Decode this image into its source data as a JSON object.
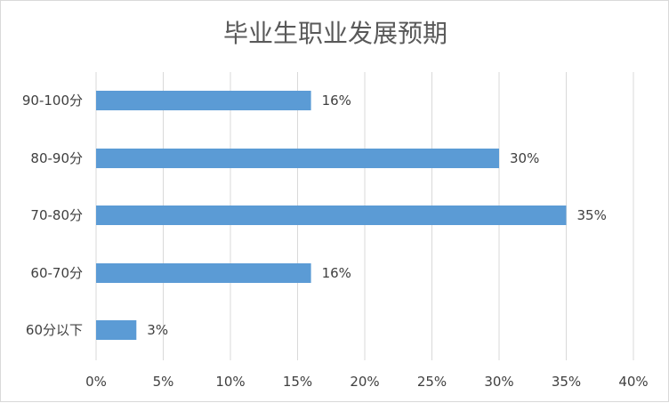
{
  "chart_data": {
    "type": "bar",
    "orientation": "horizontal",
    "title": "毕业生职业发展预期",
    "categories": [
      "90-100分",
      "80-90分",
      "70-80分",
      "60-70分",
      "60分以下"
    ],
    "values": [
      16,
      30,
      35,
      16,
      3
    ],
    "data_labels": [
      "16%",
      "30%",
      "35%",
      "16%",
      "3%"
    ],
    "xlabel": "",
    "ylabel": "",
    "xlim": [
      0,
      40
    ],
    "x_ticks": [
      0,
      5,
      10,
      15,
      20,
      25,
      30,
      35,
      40
    ],
    "x_tick_labels": [
      "0%",
      "5%",
      "10%",
      "15%",
      "20%",
      "25%",
      "30%",
      "35%",
      "40%"
    ],
    "grid": "vertical",
    "legend": "none",
    "bar_color": "#5b9bd5",
    "grid_color": "#d9d9d9"
  }
}
